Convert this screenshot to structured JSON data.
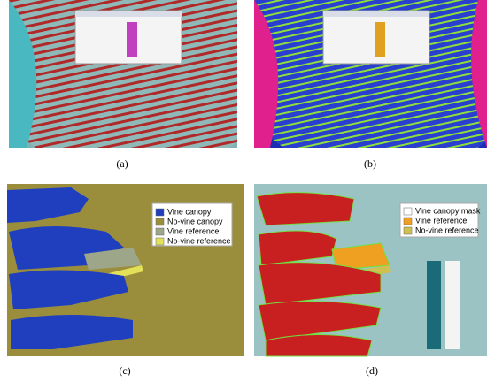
{
  "panels": [
    {
      "label": "(a)"
    },
    {
      "label": "(b)"
    },
    {
      "label": "(c)",
      "legend": [
        {
          "text": "Vine canopy",
          "color": "#1f3fbf"
        },
        {
          "text": "No-vine canopy",
          "color": "#9a8d3c"
        },
        {
          "text": "Vine reference",
          "color": "#9ea689"
        },
        {
          "text": "No-vine reference",
          "color": "#e3e05a"
        }
      ]
    },
    {
      "label": "(d)",
      "legend": [
        {
          "text": "Vine canopy mask",
          "color": "#ffffff"
        },
        {
          "text": "Vine reference",
          "color": "#f0a020"
        },
        {
          "text": "No-vine reference",
          "color": "#cfc050"
        }
      ]
    }
  ]
}
